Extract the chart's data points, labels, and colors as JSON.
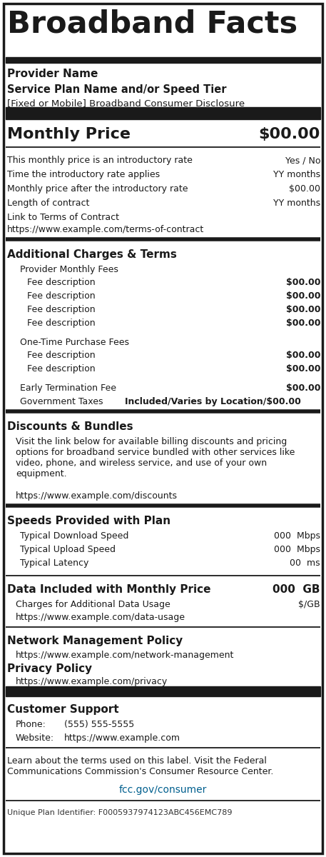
{
  "title": "Broadband Facts",
  "provider_name": "Provider Name",
  "service_plan": "Service Plan Name and/or Speed Tier",
  "disclosure": "[Fixed or Mobile] Broadband Consumer Disclosure",
  "monthly_price_label": "Monthly Price",
  "monthly_price_value": "$00.00",
  "rows_simple": [
    [
      "This monthly price is an introductory rate",
      "Yes / No"
    ],
    [
      "Time the introductory rate applies",
      "YY months"
    ],
    [
      "Monthly price after the introductory rate",
      "$00.00"
    ],
    [
      "Length of contract",
      "YY months"
    ]
  ],
  "link_to_contract_label": "Link to Terms of Contract",
  "link_to_contract_url": "https://www.example.com/terms-of-contract",
  "additional_charges_title": "Additional Charges & Terms",
  "provider_monthly_fees_label": "Provider Monthly Fees",
  "fee_rows": [
    [
      "Fee description",
      "$00.00"
    ],
    [
      "Fee description",
      "$00.00"
    ],
    [
      "Fee description",
      "$00.00"
    ],
    [
      "Fee description",
      "$00.00"
    ]
  ],
  "one_time_fees_label": "One-Time Purchase Fees",
  "one_time_fee_rows": [
    [
      "Fee description",
      "$00.00"
    ],
    [
      "Fee description",
      "$00.00"
    ]
  ],
  "early_termination_label": "Early Termination Fee",
  "early_termination_value": "$00.00",
  "govt_taxes_label": "Government Taxes",
  "govt_taxes_value": "Included/Varies by Location/$00.00",
  "discounts_title": "Discounts & Bundles",
  "discounts_text": "Visit the link below for available billing discounts and pricing\noptions for broadband service bundled with other services like\nvideo, phone, and wireless service, and use of your own\nequipment.",
  "discounts_url": "https://www.example.com/discounts",
  "speeds_title": "Speeds Provided with Plan",
  "speed_rows": [
    [
      "Typical Download Speed",
      "000  Mbps"
    ],
    [
      "Typical Upload Speed",
      "000  Mbps"
    ],
    [
      "Typical Latency",
      "00  ms"
    ]
  ],
  "data_title": "Data Included with Monthly Price",
  "data_value": "000  GB",
  "data_charges_label": "Charges for Additional Data Usage",
  "data_charges_value": "$/GB",
  "data_url": "https://www.example.com/data-usage",
  "network_title": "Network Management Policy",
  "network_url": "https://www.example.com/network-management",
  "privacy_title": "Privacy Policy",
  "privacy_url": "https://www.example.com/privacy",
  "customer_support_title": "Customer Support",
  "phone_label": "Phone:",
  "phone_value": "(555) 555-5555",
  "website_label": "Website:",
  "website_value": "https://www.example.com",
  "footer_text": "Learn about the terms used on this label. Visit the Federal\nCommunications Commission's Consumer Resource Center.",
  "fcc_url": "fcc.gov/consumer",
  "unique_id": "Unique Plan Identifier: F0005937974123ABC456EMC789",
  "bg_color": "#ffffff",
  "text_color": "#1a1a1a",
  "border_color": "#1a1a1a",
  "fcc_color": "#005f8e"
}
